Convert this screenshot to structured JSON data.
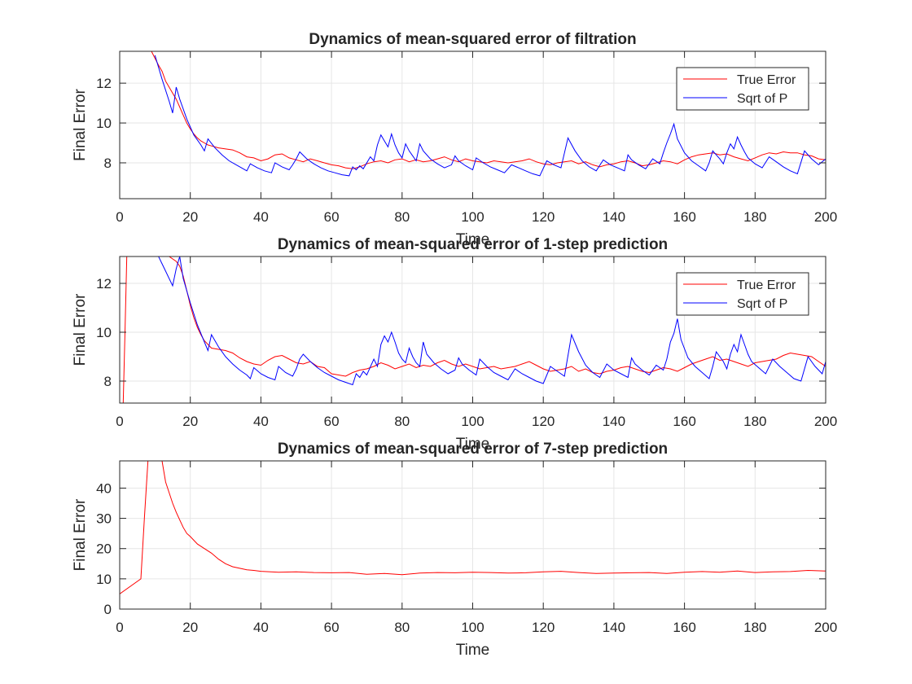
{
  "chart_data": [
    {
      "type": "line",
      "title": "Dynamics of mean-squared error of filtration",
      "xlabel": "Time",
      "ylabel": "Final Error",
      "xlim": [
        0,
        200
      ],
      "ylim": [
        6.2,
        13.6
      ],
      "xticks": [
        "0",
        "20",
        "40",
        "60",
        "80",
        "100",
        "120",
        "140",
        "160",
        "180",
        "200"
      ],
      "yticks": [
        "8",
        "10",
        "12"
      ],
      "grid": true,
      "legend": "top-right",
      "series": [
        {
          "name": "True Error",
          "color": "#ff0000",
          "x": [
            9,
            11,
            12,
            13,
            14,
            15,
            16,
            17,
            18,
            19,
            20,
            21,
            22,
            23,
            24,
            25,
            26,
            28,
            30,
            32,
            34,
            36,
            38,
            40,
            42,
            44,
            46,
            48,
            50,
            52,
            54,
            56,
            58,
            60,
            62,
            64,
            66,
            68,
            70,
            72,
            74,
            76,
            78,
            80,
            82,
            84,
            86,
            88,
            90,
            92,
            94,
            96,
            98,
            100,
            102,
            104,
            106,
            108,
            110,
            112,
            114,
            116,
            118,
            120,
            122,
            124,
            126,
            128,
            130,
            132,
            134,
            136,
            138,
            140,
            142,
            144,
            146,
            148,
            150,
            152,
            154,
            156,
            158,
            160,
            162,
            164,
            166,
            168,
            170,
            172,
            174,
            176,
            178,
            180,
            182,
            184,
            186,
            188,
            190,
            192,
            194,
            196,
            198,
            200
          ],
          "y": [
            13.6,
            12.9,
            12.6,
            12.1,
            11.8,
            11.5,
            11.2,
            10.8,
            10.4,
            10.0,
            9.7,
            9.45,
            9.25,
            9.1,
            9.0,
            8.9,
            8.85,
            8.75,
            8.7,
            8.65,
            8.5,
            8.3,
            8.25,
            8.1,
            8.2,
            8.4,
            8.45,
            8.25,
            8.15,
            8.05,
            8.2,
            8.1,
            8.0,
            7.9,
            7.85,
            7.75,
            7.7,
            7.8,
            7.95,
            8.05,
            8.1,
            8.0,
            8.15,
            8.2,
            8.05,
            8.15,
            8.05,
            8.1,
            8.2,
            8.3,
            8.15,
            8.05,
            8.2,
            8.1,
            8.05,
            8.0,
            8.1,
            8.05,
            8.0,
            8.05,
            8.1,
            8.2,
            8.05,
            7.95,
            7.9,
            8.0,
            8.05,
            8.1,
            7.95,
            8.05,
            7.9,
            7.8,
            7.9,
            7.95,
            8.05,
            8.1,
            8.0,
            7.85,
            7.9,
            8.0,
            8.1,
            8.05,
            7.95,
            8.15,
            8.3,
            8.4,
            8.45,
            8.5,
            8.4,
            8.45,
            8.3,
            8.2,
            8.1,
            8.25,
            8.4,
            8.5,
            8.45,
            8.55,
            8.5,
            8.5,
            8.4,
            8.35,
            8.2,
            8.15
          ]
        },
        {
          "name": "Sqrt of P",
          "color": "#0000ff",
          "x": [
            10,
            12,
            14,
            15,
            16,
            17,
            19,
            21,
            23,
            24,
            25,
            27,
            29,
            31,
            33,
            35,
            36,
            37,
            39,
            41,
            43,
            44,
            46,
            48,
            49,
            50,
            51,
            53,
            55,
            57,
            59,
            61,
            63,
            65,
            66,
            67,
            68,
            69,
            71,
            72,
            73,
            74,
            75,
            76,
            77,
            78,
            79,
            80,
            81,
            82,
            83,
            84,
            85,
            86,
            88,
            90,
            92,
            94,
            95,
            96,
            98,
            100,
            101,
            103,
            105,
            107,
            109,
            111,
            113,
            115,
            117,
            119,
            121,
            123,
            125,
            127,
            129,
            131,
            133,
            135,
            137,
            139,
            141,
            143,
            144,
            145,
            147,
            149,
            151,
            153,
            154,
            155,
            156,
            157,
            158,
            160,
            162,
            164,
            166,
            167,
            168,
            170,
            171,
            172,
            173,
            174,
            175,
            176,
            177,
            178,
            180,
            182,
            184,
            186,
            188,
            190,
            192,
            194,
            196,
            198,
            200
          ],
          "y": [
            13.4,
            12.2,
            11.1,
            10.5,
            11.8,
            11.2,
            10.2,
            9.4,
            8.9,
            8.6,
            9.2,
            8.75,
            8.4,
            8.1,
            7.9,
            7.7,
            7.6,
            7.95,
            7.75,
            7.6,
            7.5,
            8.0,
            7.8,
            7.65,
            7.9,
            8.2,
            8.55,
            8.2,
            7.95,
            7.75,
            7.6,
            7.5,
            7.4,
            7.35,
            7.8,
            7.65,
            7.85,
            7.7,
            8.3,
            8.1,
            8.9,
            9.4,
            9.1,
            8.8,
            9.45,
            8.9,
            8.5,
            8.25,
            8.95,
            8.6,
            8.35,
            8.1,
            8.95,
            8.6,
            8.2,
            7.95,
            7.75,
            7.9,
            8.35,
            8.1,
            7.85,
            7.65,
            8.25,
            8.0,
            7.8,
            7.65,
            7.5,
            7.9,
            7.75,
            7.6,
            7.45,
            7.35,
            8.1,
            7.9,
            7.75,
            9.25,
            8.6,
            8.1,
            7.8,
            7.6,
            8.15,
            7.9,
            7.75,
            7.6,
            8.4,
            8.15,
            7.9,
            7.7,
            8.2,
            7.95,
            8.5,
            9.0,
            9.45,
            9.95,
            9.2,
            8.5,
            8.1,
            7.85,
            7.6,
            8.0,
            8.6,
            8.2,
            7.95,
            8.5,
            8.95,
            8.7,
            9.3,
            8.9,
            8.55,
            8.25,
            7.95,
            7.75,
            8.3,
            8.05,
            7.8,
            7.6,
            7.45,
            8.6,
            8.2,
            7.9,
            8.2
          ]
        }
      ]
    },
    {
      "type": "line",
      "title": "Dynamics of mean-squared error of 1-step prediction",
      "xlabel": "Time",
      "ylabel": "Final Error",
      "xlim": [
        0,
        200
      ],
      "ylim": [
        7.1,
        13.1
      ],
      "xticks": [
        "0",
        "20",
        "40",
        "60",
        "80",
        "100",
        "120",
        "140",
        "160",
        "180",
        "200"
      ],
      "yticks": [
        "8",
        "10",
        "12"
      ],
      "grid": true,
      "legend": "top-right",
      "series": [
        {
          "name": "True Error",
          "color": "#ff0000",
          "x": [
            1,
            1.5,
            2,
            14,
            16,
            17,
            18,
            19,
            20,
            21,
            22,
            23,
            24,
            25,
            26,
            28,
            30,
            32,
            34,
            36,
            38,
            40,
            42,
            44,
            46,
            48,
            50,
            52,
            54,
            56,
            58,
            60,
            62,
            64,
            66,
            68,
            70,
            72,
            74,
            76,
            78,
            80,
            82,
            84,
            86,
            88,
            90,
            92,
            94,
            96,
            98,
            100,
            102,
            104,
            106,
            108,
            110,
            112,
            114,
            116,
            118,
            120,
            122,
            124,
            126,
            128,
            130,
            132,
            134,
            136,
            138,
            140,
            142,
            144,
            146,
            148,
            150,
            152,
            154,
            156,
            158,
            160,
            162,
            164,
            166,
            168,
            170,
            172,
            174,
            176,
            178,
            180,
            182,
            184,
            186,
            188,
            190,
            192,
            194,
            196,
            198,
            200
          ],
          "y": [
            7.1,
            10.0,
            13.1,
            13.1,
            12.9,
            12.7,
            12.3,
            11.7,
            11.1,
            10.6,
            10.2,
            9.9,
            9.65,
            9.5,
            9.35,
            9.3,
            9.25,
            9.15,
            8.95,
            8.8,
            8.7,
            8.65,
            8.85,
            9.0,
            9.05,
            8.9,
            8.75,
            8.7,
            8.8,
            8.6,
            8.55,
            8.3,
            8.25,
            8.2,
            8.35,
            8.45,
            8.5,
            8.6,
            8.75,
            8.65,
            8.5,
            8.6,
            8.7,
            8.55,
            8.65,
            8.6,
            8.75,
            8.85,
            8.7,
            8.6,
            8.7,
            8.6,
            8.5,
            8.55,
            8.6,
            8.5,
            8.55,
            8.6,
            8.7,
            8.8,
            8.65,
            8.5,
            8.4,
            8.45,
            8.5,
            8.6,
            8.4,
            8.5,
            8.35,
            8.3,
            8.4,
            8.45,
            8.55,
            8.6,
            8.5,
            8.4,
            8.35,
            8.45,
            8.55,
            8.5,
            8.4,
            8.55,
            8.7,
            8.8,
            8.9,
            9.0,
            8.85,
            8.9,
            8.8,
            8.7,
            8.6,
            8.75,
            8.8,
            8.85,
            8.9,
            9.05,
            9.15,
            9.1,
            9.05,
            9.0,
            8.8,
            8.6
          ]
        },
        {
          "name": "Sqrt of P",
          "color": "#0000ff",
          "x": [
            11,
            13,
            15,
            16,
            17,
            18,
            20,
            22,
            24,
            25,
            26,
            28,
            30,
            32,
            34,
            36,
            37,
            38,
            40,
            42,
            44,
            45,
            47,
            49,
            50,
            51,
            52,
            54,
            56,
            58,
            60,
            62,
            64,
            66,
            67,
            68,
            69,
            70,
            72,
            73,
            74,
            75,
            76,
            77,
            78,
            79,
            80,
            81,
            82,
            83,
            84,
            85,
            86,
            87,
            89,
            91,
            93,
            95,
            96,
            97,
            99,
            101,
            102,
            104,
            106,
            108,
            110,
            112,
            114,
            116,
            118,
            120,
            122,
            124,
            126,
            128,
            130,
            132,
            134,
            136,
            138,
            140,
            142,
            144,
            145,
            146,
            148,
            150,
            152,
            154,
            155,
            156,
            157,
            158,
            159,
            161,
            163,
            165,
            167,
            168,
            169,
            171,
            172,
            173,
            174,
            175,
            176,
            177,
            178,
            179,
            181,
            183,
            185,
            187,
            189,
            191,
            193,
            195,
            197,
            199,
            200
          ],
          "y": [
            13.1,
            12.5,
            11.9,
            12.6,
            13.1,
            12.2,
            11.2,
            10.3,
            9.6,
            9.25,
            9.9,
            9.4,
            9.0,
            8.7,
            8.45,
            8.25,
            8.1,
            8.55,
            8.3,
            8.15,
            8.05,
            8.6,
            8.35,
            8.2,
            8.5,
            8.9,
            9.1,
            8.8,
            8.55,
            8.35,
            8.2,
            8.05,
            7.95,
            7.85,
            8.3,
            8.15,
            8.4,
            8.25,
            8.9,
            8.6,
            9.5,
            9.85,
            9.6,
            10.0,
            9.6,
            9.15,
            8.9,
            8.75,
            9.35,
            9.0,
            8.75,
            8.6,
            9.6,
            9.1,
            8.75,
            8.5,
            8.3,
            8.45,
            8.95,
            8.7,
            8.45,
            8.25,
            8.9,
            8.6,
            8.35,
            8.2,
            8.05,
            8.5,
            8.3,
            8.15,
            8.0,
            7.9,
            8.6,
            8.4,
            8.2,
            9.9,
            9.2,
            8.65,
            8.35,
            8.15,
            8.7,
            8.45,
            8.3,
            8.15,
            8.95,
            8.7,
            8.45,
            8.25,
            8.65,
            8.45,
            8.9,
            9.6,
            9.95,
            10.55,
            9.7,
            8.95,
            8.6,
            8.35,
            8.1,
            8.6,
            9.2,
            8.8,
            8.5,
            9.1,
            9.5,
            9.2,
            9.9,
            9.5,
            9.1,
            8.8,
            8.55,
            8.3,
            8.9,
            8.6,
            8.35,
            8.1,
            8.0,
            9.0,
            8.6,
            8.3,
            8.8
          ]
        }
      ]
    },
    {
      "type": "line",
      "title": "Dynamics of mean-squared error of 7-step prediction",
      "xlabel": "Time",
      "ylabel": "Final Error",
      "xlim": [
        0,
        200
      ],
      "ylim": [
        0,
        49
      ],
      "xticks": [
        "0",
        "20",
        "40",
        "60",
        "80",
        "100",
        "120",
        "140",
        "160",
        "180",
        "200"
      ],
      "yticks": [
        "0",
        "10",
        "20",
        "30",
        "40"
      ],
      "grid": true,
      "legend": "none",
      "series": [
        {
          "name": "",
          "color": "#ff0000",
          "x": [
            0,
            6,
            7,
            8,
            12,
            13,
            14,
            15,
            16,
            17,
            18,
            19,
            20,
            22,
            24,
            26,
            28,
            30,
            32,
            34,
            36,
            38,
            40,
            45,
            50,
            55,
            60,
            65,
            70,
            75,
            80,
            85,
            90,
            95,
            100,
            105,
            110,
            115,
            120,
            125,
            130,
            135,
            140,
            145,
            150,
            155,
            160,
            165,
            170,
            175,
            180,
            185,
            190,
            195,
            200
          ],
          "y": [
            5,
            10,
            30,
            49,
            49,
            42,
            38.5,
            35,
            32,
            29.5,
            27,
            25,
            24,
            21.5,
            20,
            18.5,
            16.5,
            15,
            14,
            13.5,
            13,
            12.8,
            12.5,
            12.2,
            12.3,
            12.1,
            12.0,
            12.1,
            11.5,
            11.8,
            11.4,
            11.9,
            12.1,
            12.0,
            12.2,
            12.1,
            11.9,
            12.0,
            12.3,
            12.5,
            12.1,
            11.8,
            11.9,
            12.0,
            12.1,
            11.8,
            12.2,
            12.4,
            12.2,
            12.6,
            12.1,
            12.3,
            12.4,
            12.8,
            12.6
          ]
        }
      ]
    }
  ]
}
